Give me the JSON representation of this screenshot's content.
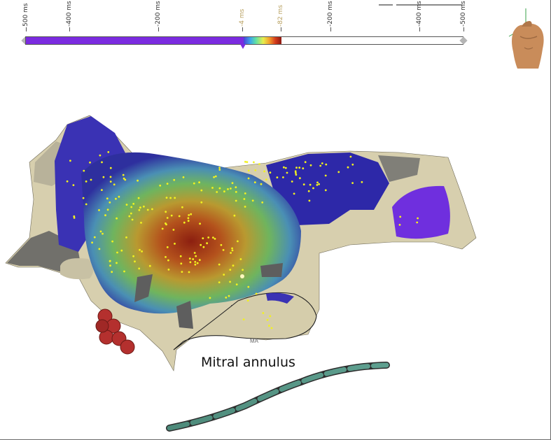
{
  "scale": {
    "ticks": [
      {
        "label": "500 ms",
        "x": 37,
        "highlight": false
      },
      {
        "label": "-400 ms",
        "x": 99,
        "highlight": false
      },
      {
        "label": "-200 ms",
        "x": 226,
        "highlight": false
      },
      {
        "label": "-4 ms",
        "x": 346,
        "highlight": true
      },
      {
        "label": "-82 ms",
        "x": 401,
        "highlight": true
      },
      {
        "label": "-200 ms",
        "x": 472,
        "highlight": false
      },
      {
        "label": "-400 ms",
        "x": 599,
        "highlight": false
      },
      {
        "label": "-500 ms",
        "x": 662,
        "highlight": false
      }
    ],
    "window_start": "-4 ms",
    "window_end": "-82 ms",
    "colors": {
      "early": "#8c1a12",
      "late": "#4a43d8",
      "out_of_range": "#7b2be0"
    }
  },
  "map": {
    "annulus_label": "Mitral annulus",
    "ma_tag": "MA"
  },
  "icons": {
    "anatomy": "torso-orientation-icon",
    "catheter": "catheter-icon",
    "ablation": "ablation-lesion-icon"
  }
}
